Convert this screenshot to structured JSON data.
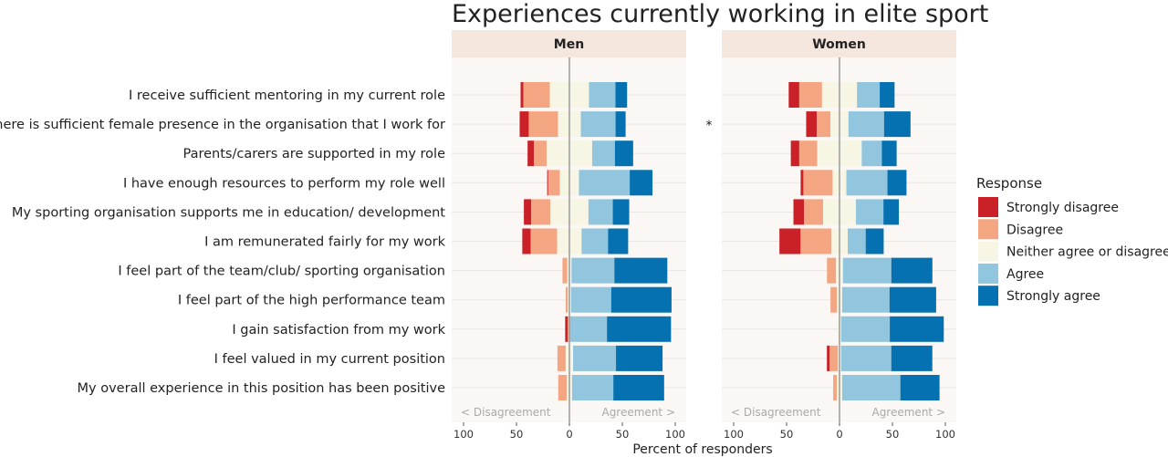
{
  "chart_data": {
    "type": "bar",
    "subtype": "diverging-stacked",
    "title": "Experiences currently working in elite sport",
    "xlabel": "Percent of responders",
    "xlim": [
      -100,
      100
    ],
    "xticks": [
      -100,
      -50,
      0,
      50,
      100
    ],
    "xtick_labels": [
      "100",
      "50",
      "0",
      "50",
      "100"
    ],
    "left_annotation": "< Disagreement",
    "right_annotation": "Agreement >",
    "legend": {
      "title": "Response",
      "placement": "right",
      "entries": [
        "Strongly disagree",
        "Disagree",
        "Neither agree or disagree",
        "Agree",
        "Strongly agree"
      ],
      "colors": [
        "#ca2028",
        "#f4a582",
        "#f7f5e3",
        "#92c5de",
        "#0571b0"
      ]
    },
    "categories": [
      "I receive sufficient mentoring in my current role",
      "There is sufficient female presence in the organisation that I work for",
      "Parents/carers are supported in my role",
      "I have enough resources to perform my role well",
      "My sporting organisation supports me in education/ development",
      "I am remunerated fairly for my work",
      "I feel part of the team/club/ sporting organisation",
      "I feel part of the high performance team",
      "I gain satisfaction from my work",
      "I feel valued in my current position",
      "My overall experience in this position has been positive"
    ],
    "annotations": [
      {
        "row": 1,
        "text": "*"
      }
    ],
    "panels": [
      {
        "name": "Men",
        "values": [
          [
            2.6,
            25,
            37,
            25,
            11
          ],
          [
            8.6,
            27.6,
            21.6,
            32.8,
            9.5
          ],
          [
            6,
            12,
            43,
            21.5,
            17.2
          ],
          [
            1,
            11,
            18,
            48,
            21.5
          ],
          [
            7,
            18,
            36,
            23,
            15.5
          ],
          [
            8,
            25,
            23,
            25,
            19
          ],
          [
            0,
            4.5,
            4,
            40.5,
            50
          ],
          [
            0,
            2,
            3,
            38,
            57
          ],
          [
            2.5,
            1,
            1,
            35,
            60.5
          ],
          [
            0,
            7.8,
            7,
            40.5,
            44
          ],
          [
            0,
            8,
            5,
            39,
            48
          ]
        ]
      },
      {
        "name": "Women",
        "values": [
          [
            10,
            21.5,
            33,
            21.5,
            14
          ],
          [
            10,
            13,
            17,
            33.6,
            25
          ],
          [
            8,
            17,
            42,
            19,
            14
          ],
          [
            2.6,
            27.6,
            13,
            38.8,
            18
          ],
          [
            10,
            18,
            31,
            26,
            14.6
          ],
          [
            20,
            29,
            15.5,
            17,
            17
          ],
          [
            0,
            8.6,
            6.5,
            45.7,
            38.8
          ],
          [
            0,
            6,
            5,
            44.8,
            44
          ],
          [
            0,
            0,
            3,
            46,
            51
          ],
          [
            2.6,
            7.8,
            3,
            47.4,
            38.8
          ],
          [
            0,
            3.5,
            5,
            55,
            37
          ]
        ]
      }
    ]
  }
}
